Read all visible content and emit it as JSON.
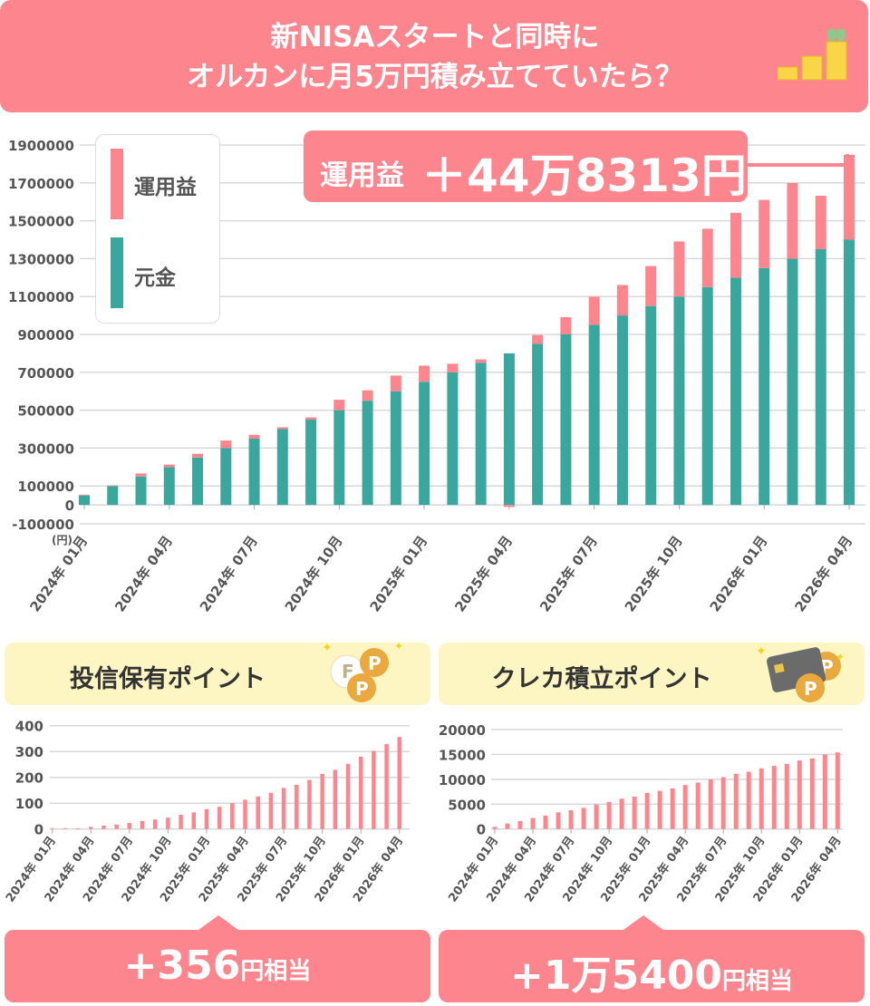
{
  "title": {
    "line1": "新NISAスタートと同時に",
    "line2": "オルカンに月5万円積み立てていたら？"
  },
  "colors": {
    "accent": "#fd858d",
    "principal": "#3aa79e",
    "header_bg": "#fef6c2",
    "coin": "#f9d648"
  },
  "callout": {
    "label": "運用益",
    "value": "＋44万8313円"
  },
  "chart_data": [
    {
      "type": "bar",
      "stacked": true,
      "unit_label": "(円)",
      "ylim": [
        -100000,
        1900000
      ],
      "yticks": [
        "1900000",
        "1700000",
        "1500000",
        "1300000",
        "1100000",
        "900000",
        "700000",
        "500000",
        "300000",
        "100000",
        "0",
        "-100000"
      ],
      "ytick_values": [
        1900000,
        1700000,
        1500000,
        1300000,
        1100000,
        900000,
        700000,
        500000,
        300000,
        100000,
        0,
        -100000
      ],
      "grid": true,
      "legend": "top-left",
      "categories": [
        "2024-01",
        "2024-02",
        "2024-03",
        "2024-04",
        "2024-05",
        "2024-06",
        "2024-07",
        "2024-08",
        "2024-09",
        "2024-10",
        "2024-11",
        "2024-12",
        "2025-01",
        "2025-02",
        "2025-03",
        "2025-04",
        "2025-05",
        "2025-06",
        "2025-07",
        "2025-08",
        "2025-09",
        "2025-10",
        "2025-11",
        "2025-12",
        "2026-01",
        "2026-02",
        "2026-03",
        "2026-04"
      ],
      "xtick_labels": [
        "2024年 01月",
        "2024年 04月",
        "2024年 07月",
        "2024年 10月",
        "2025年 01月",
        "2025年 04月",
        "2025年 07月",
        "2025年 10月",
        "2026年 01月",
        "2026年 04月"
      ],
      "series": [
        {
          "name": "元金",
          "color": "#3aa79e",
          "values": [
            50000,
            100000,
            150000,
            200000,
            250000,
            300000,
            350000,
            400000,
            450000,
            500000,
            550000,
            600000,
            650000,
            700000,
            750000,
            800000,
            850000,
            900000,
            950000,
            1000000,
            1050000,
            1100000,
            1150000,
            1200000,
            1250000,
            1300000,
            1350000,
            1400000
          ]
        },
        {
          "name": "運用益",
          "color": "#fd858d",
          "values": [
            4000,
            3000,
            16000,
            13000,
            20000,
            40000,
            20000,
            10000,
            12000,
            55000,
            55000,
            83000,
            85000,
            45000,
            18000,
            -11000,
            47000,
            91000,
            149000,
            161000,
            211000,
            291000,
            308000,
            342000,
            360000,
            399000,
            282000,
            448313
          ]
        }
      ]
    },
    {
      "type": "bar",
      "title": "投信保有ポイント",
      "ylim": [
        0,
        400
      ],
      "yticks": [
        "400",
        "300",
        "200",
        "100",
        "0"
      ],
      "ytick_values": [
        400,
        300,
        200,
        100,
        0
      ],
      "grid": true,
      "xtick_labels": [
        "2024年 01月",
        "2024年 04月",
        "2024年 07月",
        "2024年 10月",
        "2025年 01月",
        "2025年 04月",
        "2025年 07月",
        "2025年 10月",
        "2026年 01月",
        "2026年 04月"
      ],
      "values": [
        3,
        3,
        3,
        8,
        13,
        17,
        23,
        31,
        37,
        44,
        55,
        64,
        77,
        86,
        100,
        113,
        126,
        140,
        159,
        171,
        190,
        213,
        229,
        252,
        280,
        302,
        329,
        356
      ],
      "result": "+356",
      "result_unit": "円相当"
    },
    {
      "type": "bar",
      "title": "クレカ積立ポイント",
      "ylim": [
        0,
        20000
      ],
      "yticks": [
        "20000",
        "15000",
        "10000",
        "5000",
        "0"
      ],
      "ytick_values": [
        20000,
        15000,
        10000,
        5000,
        0
      ],
      "grid": true,
      "xtick_labels": [
        "2024年 01月",
        "2024年 04月",
        "2024年 07月",
        "2024年 10月",
        "2025年 01月",
        "2025年 04月",
        "2025年 07月",
        "2025年 10月",
        "2026年 01月",
        "2026年 04月"
      ],
      "values": [
        430,
        1100,
        1590,
        2200,
        2680,
        3350,
        3780,
        4270,
        4940,
        5430,
        6100,
        6520,
        7260,
        7680,
        8170,
        8840,
        9330,
        10000,
        10430,
        11100,
        11520,
        12200,
        12680,
        13110,
        13780,
        14200,
        15000,
        15400
      ],
      "result": "+1万5400",
      "result_unit": "円相当"
    }
  ]
}
